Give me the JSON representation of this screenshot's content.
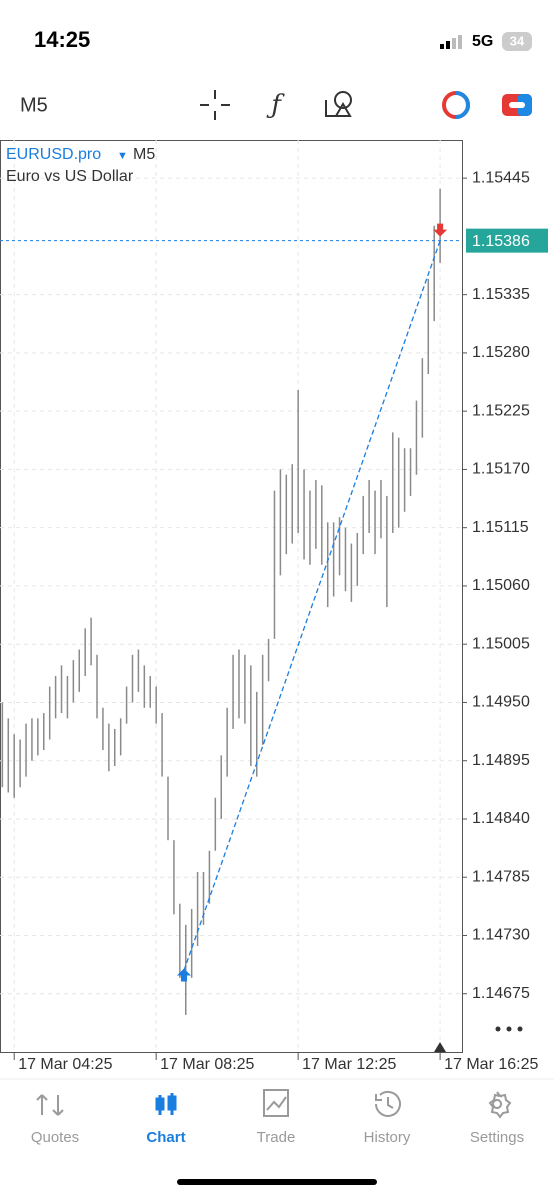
{
  "status_bar": {
    "time": "14:25",
    "network": "5G",
    "battery": "34"
  },
  "toolbar": {
    "timeframe": "M5"
  },
  "chart_data": {
    "type": "ohlc",
    "symbol": "EURUSD.pro",
    "timeframe": "M5",
    "description": "Euro vs US Dollar",
    "color": "#8a8a8a",
    "grid": true,
    "x": [
      245,
      255,
      265,
      275,
      285,
      295,
      305,
      315,
      325,
      335,
      345,
      355,
      365,
      375,
      385,
      395,
      405,
      415,
      425,
      435,
      445,
      455,
      465,
      475,
      485,
      495,
      505,
      515,
      525,
      535,
      545,
      555,
      565,
      575,
      585,
      595,
      605,
      615,
      625,
      635,
      645,
      655,
      665,
      675,
      685,
      695,
      705,
      715,
      725,
      735,
      745,
      755,
      765,
      775,
      785,
      795,
      805,
      815,
      825,
      835,
      845,
      855,
      865,
      875,
      885,
      895,
      905,
      915,
      925,
      935,
      945,
      955,
      965,
      975,
      985
    ],
    "high": [
      1.1495,
      1.14935,
      1.1492,
      1.14915,
      1.1493,
      1.14935,
      1.14935,
      1.1494,
      1.14965,
      1.14975,
      1.14985,
      1.14975,
      1.1499,
      1.15,
      1.1502,
      1.1503,
      1.14995,
      1.14945,
      1.1493,
      1.14925,
      1.14935,
      1.14965,
      1.14995,
      1.15,
      1.14985,
      1.14975,
      1.14965,
      1.1494,
      1.1488,
      1.1482,
      1.1476,
      1.1474,
      1.14755,
      1.1479,
      1.1479,
      1.1481,
      1.1486,
      1.149,
      1.14945,
      1.14995,
      1.15,
      1.14995,
      1.14985,
      1.1496,
      1.14995,
      1.1501,
      1.1515,
      1.1517,
      1.15165,
      1.15175,
      1.15245,
      1.1517,
      1.1515,
      1.1516,
      1.15155,
      1.1512,
      1.1512,
      1.15125,
      1.15115,
      1.151,
      1.1511,
      1.15145,
      1.1516,
      1.1515,
      1.1516,
      1.15145,
      1.15205,
      1.152,
      1.1519,
      1.1519,
      1.15235,
      1.15275,
      1.1535,
      1.154,
      1.15435
    ],
    "low": [
      1.1487,
      1.14865,
      1.1486,
      1.1487,
      1.1488,
      1.14895,
      1.149,
      1.14905,
      1.14915,
      1.14935,
      1.1494,
      1.14935,
      1.1495,
      1.1496,
      1.14975,
      1.14985,
      1.14935,
      1.14905,
      1.14885,
      1.1489,
      1.149,
      1.1493,
      1.1495,
      1.1496,
      1.14945,
      1.14945,
      1.1493,
      1.1488,
      1.1482,
      1.1475,
      1.1469,
      1.14655,
      1.1469,
      1.1472,
      1.1474,
      1.1476,
      1.1481,
      1.1484,
      1.1488,
      1.14925,
      1.14935,
      1.1493,
      1.1489,
      1.1488,
      1.1491,
      1.1497,
      1.1501,
      1.1507,
      1.1509,
      1.151,
      1.1511,
      1.15085,
      1.1508,
      1.15095,
      1.1508,
      1.1504,
      1.1505,
      1.1507,
      1.15055,
      1.15045,
      1.1506,
      1.1509,
      1.1511,
      1.1509,
      1.15105,
      1.1504,
      1.1511,
      1.15115,
      1.1513,
      1.15145,
      1.15165,
      1.152,
      1.1526,
      1.1531,
      1.15365
    ],
    "xlim": [
      241,
      1022
    ],
    "xticks": [
      {
        "value": 265,
        "label": "17 Mar 04:25"
      },
      {
        "value": 505,
        "label": "17 Mar 08:25"
      },
      {
        "value": 745,
        "label": "17 Mar 12:25"
      },
      {
        "value": 985,
        "label": "17 Mar 16:25"
      }
    ],
    "ylim": [
      1.1462,
      1.15481
    ],
    "yticks": [
      1.15445,
      1.15335,
      {
        "value": 1.1528,
        "label": "1.15280"
      },
      1.15225,
      {
        "value": 1.1517,
        "label": "1.15170"
      },
      1.15115,
      {
        "value": 1.1506,
        "label": "1.15060"
      },
      1.15005,
      {
        "value": 1.1495,
        "label": "1.14950"
      },
      1.14895,
      {
        "value": 1.1484,
        "label": "1.14840"
      },
      1.14785,
      {
        "value": 1.1473,
        "label": "1.14730"
      },
      1.14675
    ],
    "current_price": 1.15386,
    "current_price_color": "#26a69a",
    "trade": {
      "x": [
        552,
        985
      ],
      "y": [
        1.14697,
        1.15386
      ],
      "color": "#1a7de0"
    }
  },
  "nav": {
    "tabs": [
      "Quotes",
      "Chart",
      "Trade",
      "History",
      "Settings"
    ],
    "active": 1
  }
}
